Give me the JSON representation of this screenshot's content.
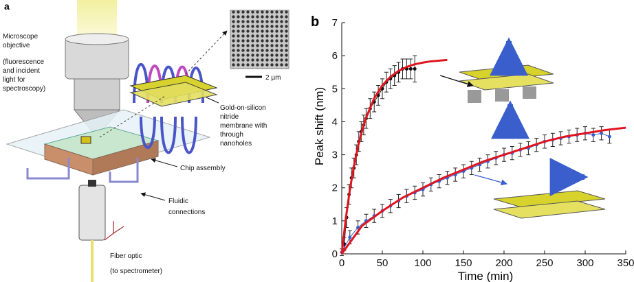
{
  "panel_a": {
    "label": "a",
    "objective_text": [
      "Microscope",
      "objective",
      "(fluorescence",
      "and incident",
      "light for",
      "spectroscopy)"
    ],
    "membrane_text": [
      "Gold-on-silicon",
      "nitride",
      "membrane with",
      "through",
      "nanoholes"
    ],
    "scale_bar": "2 µm",
    "chip_text": "Chip assembly",
    "fluidic_text": [
      "Fluidic",
      "connections"
    ],
    "fiber_text": [
      "Fiber optic",
      "(to spectrometer)"
    ]
  },
  "chart_data": {
    "type": "scatter",
    "panel_label": "b",
    "xlabel": "Time (min)",
    "ylabel": "Peak shift (nm)",
    "xlim": [
      0,
      350
    ],
    "xticks": [
      0,
      50,
      100,
      150,
      200,
      250,
      300,
      350
    ],
    "ylim": [
      0,
      7
    ],
    "yticks": [
      0,
      1,
      2,
      3,
      4,
      5,
      6,
      7
    ],
    "series": [
      {
        "mode": "points",
        "color": "#111111",
        "x": [
          3,
          6,
          9,
          12,
          15,
          18,
          21,
          24,
          27,
          30,
          35,
          40,
          45,
          50,
          55,
          60,
          65,
          70,
          75,
          80,
          85,
          90
        ],
        "values": [
          0.3,
          1.1,
          1.8,
          2.3,
          2.6,
          3.0,
          3.4,
          3.7,
          3.9,
          4.1,
          4.4,
          4.6,
          4.8,
          5.0,
          5.2,
          5.3,
          5.4,
          5.5,
          5.6,
          5.6,
          5.6,
          5.6
        ],
        "errors": [
          0.2,
          0.3,
          0.3,
          0.3,
          0.3,
          0.3,
          0.3,
          0.3,
          0.3,
          0.3,
          0.3,
          0.3,
          0.3,
          0.3,
          0.3,
          0.3,
          0.3,
          0.3,
          0.3,
          0.3,
          0.3,
          0.4
        ]
      },
      {
        "mode": "points",
        "color": "#3a5fcd",
        "x": [
          0,
          10,
          20,
          30,
          40,
          50,
          60,
          70,
          80,
          90,
          100,
          110,
          120,
          130,
          140,
          150,
          160,
          170,
          180,
          190,
          200,
          210,
          220,
          230,
          240,
          250,
          260,
          270,
          280,
          290,
          300,
          310,
          320,
          330
        ],
        "values": [
          0.05,
          0.5,
          0.8,
          1.0,
          1.15,
          1.3,
          1.45,
          1.6,
          1.75,
          1.85,
          1.95,
          2.1,
          2.2,
          2.3,
          2.4,
          2.5,
          2.6,
          2.7,
          2.8,
          2.9,
          3.0,
          3.05,
          3.15,
          3.2,
          3.3,
          3.4,
          3.45,
          3.5,
          3.55,
          3.6,
          3.65,
          3.6,
          3.65,
          3.55
        ],
        "errors": [
          0.1,
          0.2,
          0.2,
          0.2,
          0.2,
          0.2,
          0.2,
          0.2,
          0.2,
          0.2,
          0.2,
          0.2,
          0.2,
          0.2,
          0.2,
          0.2,
          0.2,
          0.2,
          0.2,
          0.2,
          0.2,
          0.2,
          0.2,
          0.2,
          0.2,
          0.2,
          0.2,
          0.2,
          0.2,
          0.2,
          0.2,
          0.2,
          0.2,
          0.2
        ]
      },
      {
        "mode": "line",
        "color": "#e0141e",
        "x": [
          0,
          5,
          10,
          15,
          20,
          25,
          30,
          40,
          50,
          60,
          70,
          80,
          90,
          100,
          110,
          120,
          130
        ],
        "values": [
          0,
          1.07,
          1.94,
          2.66,
          3.25,
          3.73,
          4.12,
          4.71,
          5.1,
          5.36,
          5.54,
          5.66,
          5.74,
          5.79,
          5.83,
          5.85,
          5.87
        ]
      },
      {
        "mode": "line",
        "color": "#e0141e",
        "x": [
          0,
          25,
          50,
          75,
          100,
          125,
          150,
          175,
          200,
          225,
          250,
          275,
          300,
          325,
          350
        ],
        "values": [
          0,
          0.85,
          1.3,
          1.7,
          2.0,
          2.3,
          2.55,
          2.8,
          3.0,
          3.2,
          3.4,
          3.55,
          3.65,
          3.75,
          3.82
        ]
      }
    ]
  }
}
